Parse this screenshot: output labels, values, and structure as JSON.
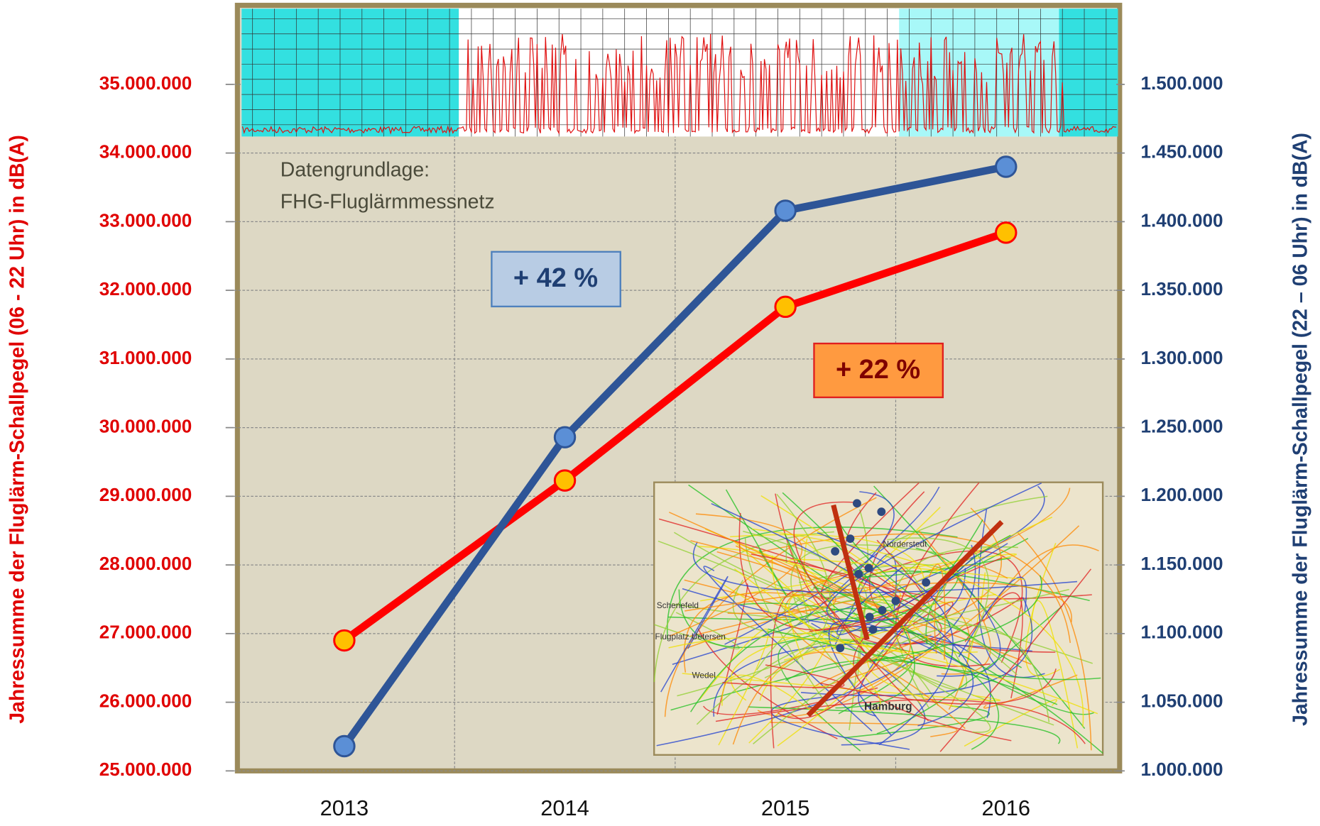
{
  "chart_data": {
    "type": "line",
    "categories": [
      "2013",
      "2014",
      "2015",
      "2016"
    ],
    "series": [
      {
        "name": "Jahressumme 06 - 22 Uhr",
        "color": "#ff0000",
        "marker_color": "#ffc000",
        "values": [
          26900000,
          29230000,
          31760000,
          32840000
        ]
      },
      {
        "name": "Jahressumme 22 – 06 Uhr",
        "color": "#2e5597",
        "marker_color": "#5b8fd6",
        "axis": "y2",
        "values": [
          1018000,
          1243000,
          1408000,
          1440000
        ]
      }
    ],
    "ylabel": "Jahressumme der Fluglärm-Schallpegel (06 - 22 Uhr) in dB(A)",
    "y2label": "Jahressumme der Fluglärm-Schallpegel (22 – 06 Uhr) in dB(A)",
    "ylim": [
      25000000,
      35000000
    ],
    "yticks": [
      {
        "value": 25000000,
        "label": "25.000.000"
      },
      {
        "value": 26000000,
        "label": "26.000.000"
      },
      {
        "value": 27000000,
        "label": "27.000.000"
      },
      {
        "value": 28000000,
        "label": "28.000.000"
      },
      {
        "value": 29000000,
        "label": "29.000.000"
      },
      {
        "value": 30000000,
        "label": "30.000.000"
      },
      {
        "value": 31000000,
        "label": "31.000.000"
      },
      {
        "value": 32000000,
        "label": "32.000.000"
      },
      {
        "value": 33000000,
        "label": "33.000.000"
      },
      {
        "value": 34000000,
        "label": "34.000.000"
      },
      {
        "value": 35000000,
        "label": "35.000.000"
      }
    ],
    "y2lim": [
      1000000,
      1500000
    ],
    "y2ticks": [
      {
        "value": 1000000,
        "label": "1.000.000"
      },
      {
        "value": 1050000,
        "label": "1.050.000"
      },
      {
        "value": 1100000,
        "label": "1.100.000"
      },
      {
        "value": 1150000,
        "label": "1.150.000"
      },
      {
        "value": 1200000,
        "label": "1.200.000"
      },
      {
        "value": 1250000,
        "label": "1.250.000"
      },
      {
        "value": 1300000,
        "label": "1.300.000"
      },
      {
        "value": 1350000,
        "label": "1.350.000"
      },
      {
        "value": 1400000,
        "label": "1.400.000"
      },
      {
        "value": 1450000,
        "label": "1.450.000"
      },
      {
        "value": 1500000,
        "label": "1.500.000"
      }
    ],
    "grid": true,
    "annotations": [
      "Datengrundlage:",
      "FHG-Fluglärmmessnetz",
      "+ 42 %",
      "+ 22 %"
    ]
  },
  "inset_map": {
    "labels": [
      "Hamburg",
      "Norderstedt",
      "Flugplatz Uetersen",
      "Wedel",
      "Schenefeld"
    ]
  }
}
